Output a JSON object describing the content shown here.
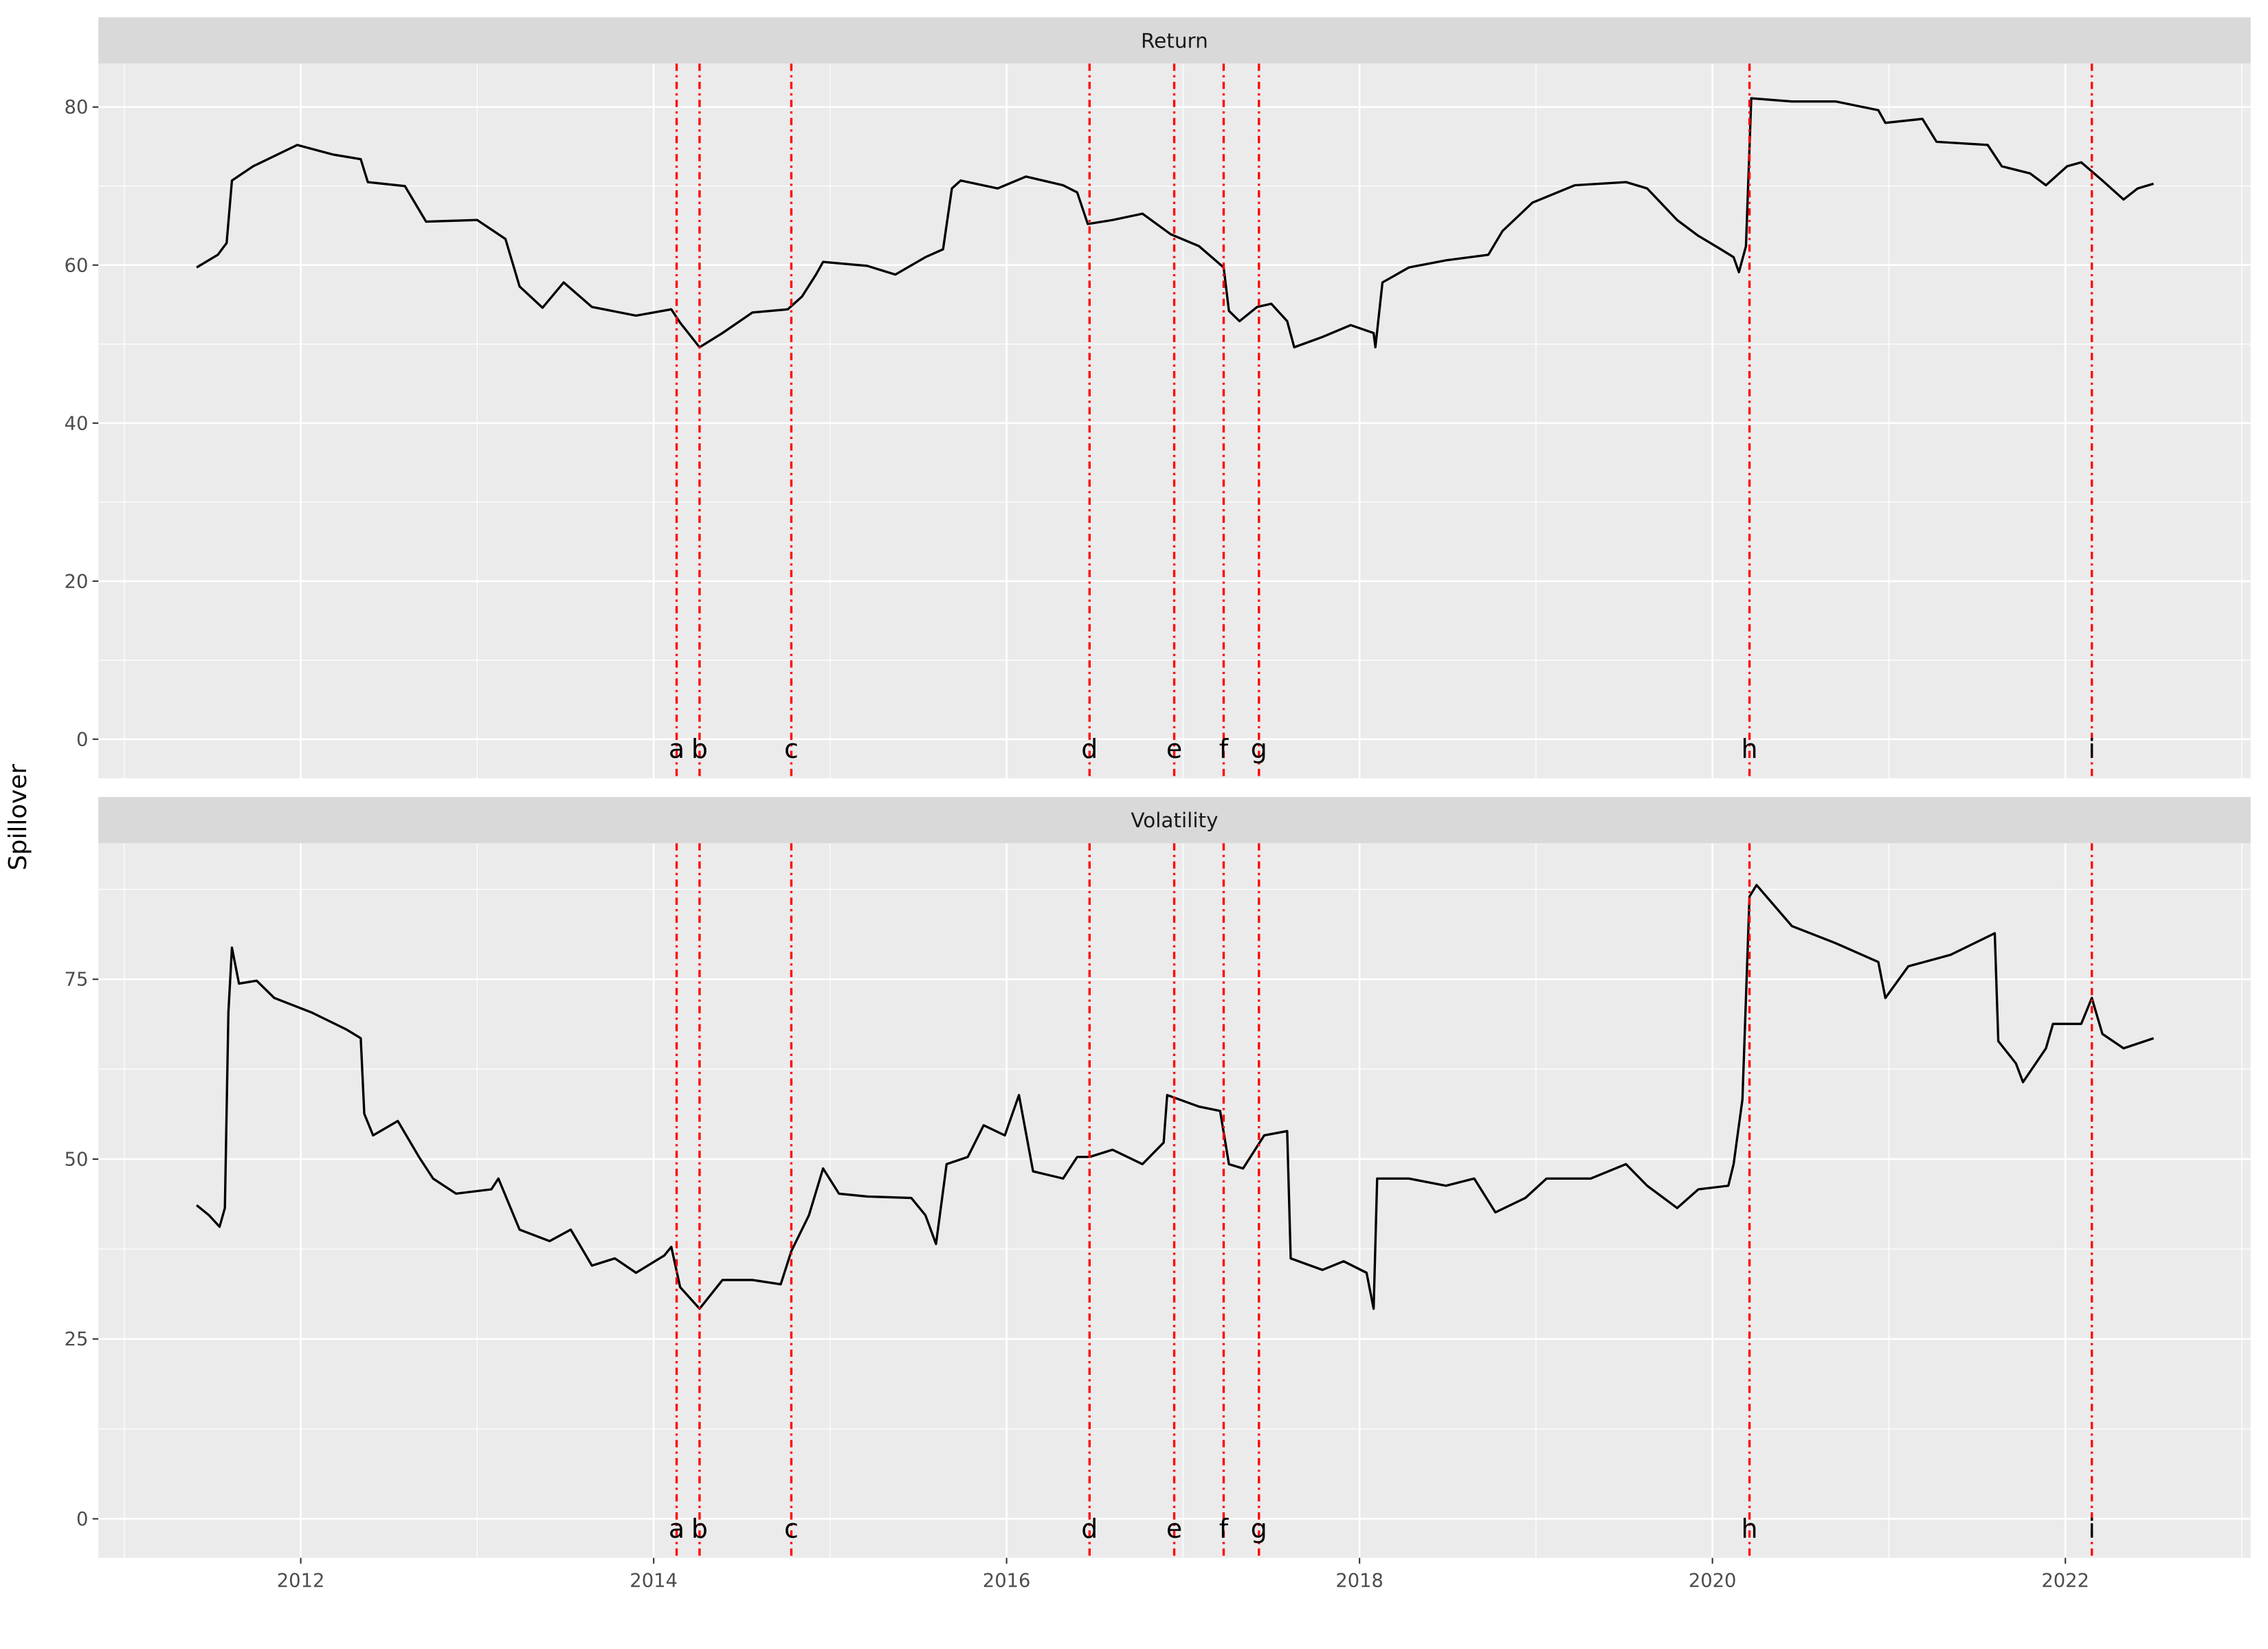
{
  "chart_data": {
    "type": "line",
    "ylabel": "Spillover",
    "xlim": [
      2010.853,
      2023.05
    ],
    "xticks": [
      2012,
      2014,
      2016,
      2018,
      2020,
      2022
    ],
    "minor_xticks": [
      2011,
      2013,
      2015,
      2017,
      2019,
      2021,
      2023
    ],
    "grid": true,
    "line_color": "#000000",
    "event_color": "#ff0000",
    "events": [
      {
        "label": "a",
        "x": 2014.13
      },
      {
        "label": "b",
        "x": 2014.26
      },
      {
        "label": "c",
        "x": 2014.78
      },
      {
        "label": "d",
        "x": 2016.47
      },
      {
        "label": "e",
        "x": 2016.95
      },
      {
        "label": "f",
        "x": 2017.23
      },
      {
        "label": "g",
        "x": 2017.43
      },
      {
        "label": "h",
        "x": 2020.21
      },
      {
        "label": "i",
        "x": 2022.15
      }
    ],
    "panels": [
      {
        "title": "Return",
        "ylim": [
          -4.94,
          85.49
        ],
        "yticks": [
          0,
          20,
          40,
          60,
          80
        ],
        "minor_yticks": [
          10,
          30,
          50,
          70
        ],
        "x": [
          2011.41,
          2011.53,
          2011.58,
          2011.61,
          2011.73,
          2011.98,
          2012.18,
          2012.34,
          2012.38,
          2012.59,
          2012.71,
          2013.0,
          2013.16,
          2013.24,
          2013.37,
          2013.49,
          2013.65,
          2013.9,
          2014.1,
          2014.15,
          2014.26,
          2014.39,
          2014.56,
          2014.76,
          2014.84,
          2014.92,
          2014.96,
          2015.21,
          2015.37,
          2015.54,
          2015.64,
          2015.69,
          2015.74,
          2015.95,
          2016.11,
          2016.32,
          2016.4,
          2016.46,
          2016.6,
          2016.77,
          2016.93,
          2017.09,
          2017.23,
          2017.26,
          2017.32,
          2017.42,
          2017.5,
          2017.59,
          2017.63,
          2017.79,
          2017.95,
          2018.08,
          2018.09,
          2018.13,
          2018.28,
          2018.49,
          2018.73,
          2018.81,
          2018.98,
          2019.22,
          2019.51,
          2019.63,
          2019.8,
          2019.92,
          2020.04,
          2020.12,
          2020.15,
          2020.19,
          2020.22,
          2020.45,
          2020.7,
          2020.94,
          2020.98,
          2021.19,
          2021.27,
          2021.56,
          2021.64,
          2021.8,
          2021.89,
          2022.01,
          2022.09,
          2022.21,
          2022.33,
          2022.41,
          2022.5
        ],
        "values": [
          59.7,
          61.3,
          62.8,
          70.7,
          72.5,
          75.2,
          74,
          73.4,
          70.5,
          70,
          65.5,
          65.7,
          63.3,
          57.3,
          54.6,
          57.8,
          54.7,
          53.6,
          54.4,
          52.7,
          49.6,
          51.4,
          54,
          54.4,
          56,
          58.8,
          60.4,
          59.9,
          58.8,
          61,
          62,
          69.7,
          70.7,
          69.7,
          71.2,
          70.1,
          69.2,
          65.2,
          65.7,
          66.5,
          63.9,
          62.4,
          59.7,
          54.2,
          52.9,
          54.7,
          55.1,
          52.9,
          49.6,
          50.9,
          52.4,
          51.4,
          49.6,
          57.8,
          59.7,
          60.6,
          61.3,
          64.3,
          67.9,
          70.1,
          70.5,
          69.7,
          65.7,
          63.7,
          62.1,
          61,
          59.1,
          62.4,
          81.1,
          80.7,
          80.7,
          79.6,
          78,
          78.5,
          75.6,
          75.2,
          72.5,
          71.6,
          70.1,
          72.5,
          73,
          70.7,
          68.3,
          69.7,
          70.3
        ]
      },
      {
        "title": "Volatility",
        "ylim": [
          -5.43,
          93.9
        ],
        "yticks": [
          0,
          25,
          50,
          75
        ],
        "minor_yticks": [
          12.5,
          37.5,
          62.5,
          87.5
        ],
        "x": [
          2011.41,
          2011.48,
          2011.54,
          2011.57,
          2011.59,
          2011.61,
          2011.65,
          2011.75,
          2011.85,
          2012.06,
          2012.26,
          2012.34,
          2012.36,
          2012.41,
          2012.55,
          2012.67,
          2012.75,
          2012.88,
          2013.08,
          2013.12,
          2013.24,
          2013.41,
          2013.53,
          2013.65,
          2013.78,
          2013.9,
          2014.06,
          2014.1,
          2014.15,
          2014.26,
          2014.39,
          2014.56,
          2014.72,
          2014.78,
          2014.88,
          2014.96,
          2015.05,
          2015.21,
          2015.46,
          2015.54,
          2015.6,
          2015.66,
          2015.78,
          2015.87,
          2015.99,
          2016.07,
          2016.15,
          2016.32,
          2016.4,
          2016.47,
          2016.6,
          2016.77,
          2016.89,
          2016.91,
          2017.09,
          2017.21,
          2017.26,
          2017.34,
          2017.46,
          2017.59,
          2017.61,
          2017.79,
          2017.91,
          2018.04,
          2018.08,
          2018.1,
          2018.28,
          2018.49,
          2018.65,
          2018.77,
          2018.94,
          2019.06,
          2019.31,
          2019.51,
          2019.63,
          2019.8,
          2019.92,
          2020.09,
          2020.12,
          2020.17,
          2020.21,
          2020.25,
          2020.45,
          2020.7,
          2020.94,
          2020.98,
          2021.11,
          2021.35,
          2021.6,
          2021.62,
          2021.72,
          2021.76,
          2021.89,
          2021.93,
          2022.09,
          2022.15,
          2022.21,
          2022.33,
          2022.5
        ],
        "values": [
          43.6,
          42.2,
          40.6,
          43.2,
          70.4,
          79.4,
          74.4,
          74.8,
          72.4,
          70.4,
          68,
          66.8,
          56.3,
          53.3,
          55.3,
          50.3,
          47.3,
          45.2,
          45.8,
          47.3,
          40.2,
          38.6,
          40.2,
          35.2,
          36.2,
          34.2,
          36.6,
          37.8,
          32.2,
          29.2,
          33.2,
          33.2,
          32.6,
          37.2,
          42.2,
          48.7,
          45.2,
          44.8,
          44.6,
          42.2,
          38.2,
          49.3,
          50.3,
          54.7,
          53.3,
          58.9,
          48.3,
          47.3,
          50.3,
          50.3,
          51.3,
          49.3,
          52.3,
          58.9,
          57.3,
          56.7,
          49.3,
          48.7,
          53.3,
          53.9,
          36.2,
          34.6,
          35.8,
          34.2,
          29.2,
          47.3,
          47.3,
          46.3,
          47.3,
          42.6,
          44.6,
          47.3,
          47.3,
          49.3,
          46.3,
          43.2,
          45.8,
          46.3,
          49.3,
          58.3,
          86.5,
          88.1,
          82.4,
          80,
          77.4,
          72.4,
          76.8,
          78.4,
          81.4,
          66.4,
          63.3,
          60.7,
          65.4,
          68.8,
          68.8,
          72.4,
          67.4,
          65.4,
          66.8
        ]
      }
    ]
  }
}
